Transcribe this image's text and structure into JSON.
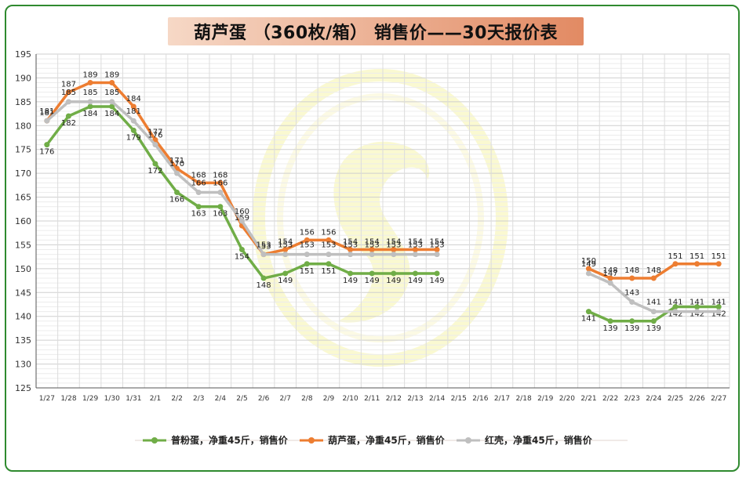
{
  "chart_data": {
    "type": "line",
    "title": "葫芦蛋 （360枚/箱） 销售价——30天报价表",
    "xlabel": "",
    "ylabel": "",
    "ylim": [
      125,
      195
    ],
    "ytick_step": 5,
    "grid": true,
    "legend_position": "bottom",
    "categories": [
      "1/27",
      "1/28",
      "1/29",
      "1/30",
      "1/31",
      "2/1",
      "2/2",
      "2/3",
      "2/4",
      "2/5",
      "2/6",
      "2/7",
      "2/8",
      "2/9",
      "2/10",
      "2/11",
      "2/12",
      "2/13",
      "2/14",
      "2/15",
      "2/16",
      "2/17",
      "2/18",
      "2/19",
      "2/20",
      "2/21",
      "2/22",
      "2/23",
      "2/24",
      "2/25",
      "2/26",
      "2/27"
    ],
    "series": [
      {
        "name": "普粉蛋，净重45斤，销售价",
        "color": "#70ad47",
        "values": [
          176,
          182,
          184,
          184,
          179,
          172,
          166,
          163,
          163,
          154,
          148,
          149,
          151,
          151,
          149,
          149,
          149,
          149,
          149,
          null,
          null,
          null,
          null,
          null,
          null,
          141,
          139,
          139,
          139,
          142,
          142,
          142
        ]
      },
      {
        "name": "葫芦蛋，净重45斤，销售价",
        "color": "#ed7d31",
        "values": [
          181,
          187,
          189,
          189,
          184,
          177,
          171,
          168,
          168,
          159,
          153,
          154,
          156,
          156,
          154,
          154,
          154,
          154,
          154,
          null,
          null,
          null,
          null,
          null,
          null,
          150,
          148,
          148,
          148,
          151,
          151,
          151
        ]
      },
      {
        "name": "红壳，净重45斤，销售价",
        "color": "#bfbfbf",
        "values": [
          181,
          185,
          185,
          185,
          181,
          176,
          170,
          166,
          166,
          160,
          153,
          153,
          153,
          153,
          153,
          153,
          153,
          153,
          153,
          null,
          null,
          null,
          null,
          null,
          null,
          149,
          147,
          143,
          141,
          141,
          141,
          141
        ]
      }
    ]
  }
}
